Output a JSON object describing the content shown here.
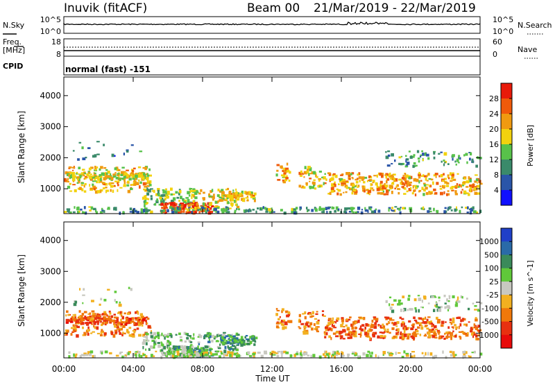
{
  "header": {
    "site": "Inuvik (fitACF)",
    "beam": "Beam 00",
    "date_range": "21/Mar/2019 - 22/Mar/2019"
  },
  "panels": {
    "nsky": {
      "label": "N.Sky",
      "right_label": "N.Search",
      "left_ticks": [
        "10^5",
        "10^0"
      ],
      "right_ticks": [
        "10^5",
        "10^0"
      ]
    },
    "freq": {
      "label_line1": "Freq.",
      "label_line2": "[MHz]",
      "right_label": "Nave",
      "left_ticks": [
        "18",
        "8"
      ],
      "right_ticks": [
        "60",
        "0"
      ]
    },
    "cpid": {
      "label": "CPID",
      "value": "normal (fast) -151"
    }
  },
  "chart_data": [
    {
      "type": "heatmap",
      "name": "power",
      "ylabel": "Slant Range [km]",
      "yticks": [
        "1000",
        "2000",
        "3000",
        "4000"
      ],
      "ylim": [
        200,
        4600
      ],
      "xticks": [
        "00:00",
        "04:00",
        "08:00",
        "12:00",
        "16:00",
        "20:00",
        "00:00"
      ],
      "x_range_hours": [
        0,
        24
      ],
      "colorbar_label": "Power [dB]",
      "colorbar_ticks": [
        "4",
        "8",
        "12",
        "16",
        "20",
        "24",
        "28"
      ],
      "colorbar_colors": [
        "#1010ff",
        "#2a55a8",
        "#3a8a6a",
        "#58c24a",
        "#f2d20e",
        "#f09a10",
        "#f05a0a",
        "#e81a0a"
      ]
    },
    {
      "type": "heatmap",
      "name": "velocity",
      "ylabel": "Slant Range [km]",
      "yticks": [
        "1000",
        "2000",
        "3000",
        "4000"
      ],
      "ylim": [
        200,
        4600
      ],
      "xticks": [
        "00:00",
        "04:00",
        "08:00",
        "12:00",
        "16:00",
        "20:00",
        "00:00"
      ],
      "xlabel": "Time UT",
      "x_range_hours": [
        0,
        24
      ],
      "colorbar_label": "Velocity [m s^-1]",
      "colorbar_ticks": [
        "1000",
        "500",
        "100",
        "25",
        "-25",
        "-100",
        "-500",
        "-1000"
      ],
      "colorbar_colors": [
        "#2040c8",
        "#2a6aa8",
        "#3a8a5a",
        "#60c83a",
        "#c8c8c0",
        "#f2b020",
        "#f0780a",
        "#e83010",
        "#e80a0a"
      ]
    }
  ]
}
